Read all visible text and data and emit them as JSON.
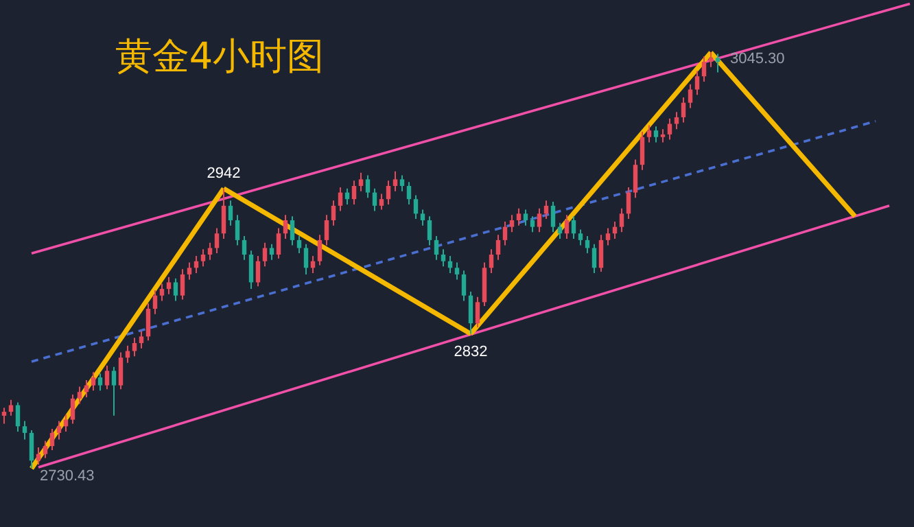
{
  "chart_data": {
    "type": "candlestick",
    "title": "黄金4小时图",
    "categories": [
      null,
      null,
      null,
      null,
      null,
      null,
      null,
      null,
      null,
      null,
      null,
      null,
      null,
      null,
      null,
      null,
      null,
      null,
      null,
      null,
      null,
      null,
      null,
      null,
      null,
      null,
      null,
      null,
      null,
      null,
      null,
      null,
      null,
      null,
      null,
      null,
      null,
      null,
      null,
      null,
      null,
      null,
      null,
      null,
      null,
      null,
      null,
      null,
      null,
      null,
      null,
      null,
      null,
      null,
      null,
      null,
      null,
      null,
      null,
      null,
      null,
      null,
      null,
      null,
      null,
      null,
      null,
      null,
      null,
      null,
      null,
      null,
      null,
      null,
      null,
      null,
      null,
      null,
      null,
      null,
      null,
      null,
      null,
      null,
      null,
      null,
      null,
      null,
      null,
      null,
      null,
      null,
      null,
      null,
      null,
      null,
      null,
      null,
      null,
      null,
      null,
      null,
      null,
      null,
      null,
      null,
      null,
      null,
      null,
      null,
      null,
      null,
      null,
      null,
      null,
      null,
      null,
      null,
      null,
      null,
      null,
      null,
      null,
      null,
      null,
      null,
      null,
      null,
      null,
      null,
      null,
      null,
      null,
      null
    ],
    "ohlc": [
      [
        2770,
        2776,
        2764,
        2773
      ],
      [
        2773,
        2782,
        2770,
        2778
      ],
      [
        2778,
        2780,
        2758,
        2762
      ],
      [
        2762,
        2766,
        2752,
        2757
      ],
      [
        2757,
        2759,
        2730.43,
        2736
      ],
      [
        2736,
        2746,
        2733,
        2741
      ],
      [
        2741,
        2751,
        2738,
        2747
      ],
      [
        2747,
        2760,
        2744,
        2757
      ],
      [
        2757,
        2766,
        2752,
        2762
      ],
      [
        2762,
        2771,
        2758,
        2767
      ],
      [
        2767,
        2786,
        2764,
        2783
      ],
      [
        2783,
        2792,
        2779,
        2788
      ],
      [
        2788,
        2797,
        2784,
        2793
      ],
      [
        2793,
        2803,
        2789,
        2799
      ],
      [
        2799,
        2802,
        2789,
        2793
      ],
      [
        2793,
        2808,
        2790,
        2804
      ],
      [
        2804,
        2807,
        2770,
        2793
      ],
      [
        2793,
        2818,
        2790,
        2814
      ],
      [
        2814,
        2823,
        2810,
        2819
      ],
      [
        2819,
        2829,
        2815,
        2825
      ],
      [
        2825,
        2834,
        2821,
        2830
      ],
      [
        2830,
        2855,
        2827,
        2851
      ],
      [
        2851,
        2865,
        2847,
        2861
      ],
      [
        2861,
        2870,
        2857,
        2866
      ],
      [
        2866,
        2875,
        2862,
        2871
      ],
      [
        2871,
        2874,
        2857,
        2861
      ],
      [
        2861,
        2881,
        2858,
        2877
      ],
      [
        2877,
        2886,
        2873,
        2882
      ],
      [
        2882,
        2891,
        2878,
        2887
      ],
      [
        2887,
        2896,
        2883,
        2892
      ],
      [
        2892,
        2901,
        2888,
        2897
      ],
      [
        2897,
        2912,
        2893,
        2908
      ],
      [
        2908,
        2942,
        2904,
        2929
      ],
      [
        2929,
        2933,
        2914,
        2918
      ],
      [
        2918,
        2922,
        2899,
        2903
      ],
      [
        2903,
        2906,
        2888,
        2892
      ],
      [
        2892,
        2895,
        2866,
        2871
      ],
      [
        2871,
        2891,
        2868,
        2887
      ],
      [
        2887,
        2901,
        2883,
        2897
      ],
      [
        2897,
        2900,
        2888,
        2892
      ],
      [
        2892,
        2912,
        2889,
        2908
      ],
      [
        2908,
        2922,
        2904,
        2918
      ],
      [
        2918,
        2921,
        2899,
        2903
      ],
      [
        2903,
        2906,
        2893,
        2897
      ],
      [
        2897,
        2900,
        2877,
        2882
      ],
      [
        2882,
        2891,
        2878,
        2887
      ],
      [
        2887,
        2907,
        2884,
        2903
      ],
      [
        2903,
        2922,
        2899,
        2918
      ],
      [
        2918,
        2933,
        2914,
        2929
      ],
      [
        2929,
        2943,
        2925,
        2939
      ],
      [
        2939,
        2942,
        2930,
        2934
      ],
      [
        2934,
        2948,
        2930,
        2944
      ],
      [
        2944,
        2954,
        2940,
        2949
      ],
      [
        2949,
        2952,
        2935,
        2939
      ],
      [
        2939,
        2942,
        2925,
        2929
      ],
      [
        2929,
        2938,
        2926,
        2934
      ],
      [
        2934,
        2948,
        2930,
        2944
      ],
      [
        2944,
        2955,
        2940,
        2949
      ],
      [
        2949,
        2952,
        2940,
        2944
      ],
      [
        2944,
        2947,
        2930,
        2934
      ],
      [
        2934,
        2937,
        2919,
        2923
      ],
      [
        2923,
        2926,
        2914,
        2918
      ],
      [
        2918,
        2921,
        2899,
        2903
      ],
      [
        2903,
        2906,
        2888,
        2892
      ],
      [
        2892,
        2896,
        2883,
        2887
      ],
      [
        2887,
        2891,
        2878,
        2882
      ],
      [
        2882,
        2886,
        2873,
        2877
      ],
      [
        2877,
        2880,
        2857,
        2861
      ],
      [
        2861,
        2864,
        2832,
        2840
      ],
      [
        2840,
        2860,
        2837,
        2856
      ],
      [
        2856,
        2886,
        2853,
        2882
      ],
      [
        2882,
        2896,
        2878,
        2892
      ],
      [
        2892,
        2907,
        2888,
        2903
      ],
      [
        2903,
        2917,
        2899,
        2913
      ],
      [
        2913,
        2922,
        2909,
        2918
      ],
      [
        2918,
        2927,
        2914,
        2923
      ],
      [
        2923,
        2926,
        2914,
        2918
      ],
      [
        2918,
        2921,
        2909,
        2913
      ],
      [
        2913,
        2927,
        2909,
        2923
      ],
      [
        2923,
        2933,
        2919,
        2929
      ],
      [
        2929,
        2932,
        2909,
        2913
      ],
      [
        2913,
        2916,
        2904,
        2908
      ],
      [
        2908,
        2922,
        2904,
        2918
      ],
      [
        2918,
        2921,
        2904,
        2908
      ],
      [
        2908,
        2911,
        2899,
        2903
      ],
      [
        2903,
        2906,
        2893,
        2897
      ],
      [
        2897,
        2900,
        2878,
        2882
      ],
      [
        2882,
        2907,
        2879,
        2903
      ],
      [
        2903,
        2912,
        2899,
        2908
      ],
      [
        2908,
        2917,
        2904,
        2913
      ],
      [
        2913,
        2927,
        2909,
        2923
      ],
      [
        2923,
        2943,
        2919,
        2939
      ],
      [
        2939,
        2964,
        2935,
        2960
      ],
      [
        2960,
        2985,
        2956,
        2981
      ],
      [
        2981,
        2990,
        2977,
        2986
      ],
      [
        2986,
        2989,
        2977,
        2981
      ],
      [
        2981,
        2987,
        2977,
        2983
      ],
      [
        2983,
        2995,
        2979,
        2991
      ],
      [
        2991,
        3000,
        2987,
        2996
      ],
      [
        2996,
        3011,
        2992,
        3007
      ],
      [
        3007,
        3021,
        3003,
        3017
      ],
      [
        3017,
        3031,
        3013,
        3027
      ],
      [
        3027,
        3042,
        3023,
        3038
      ],
      [
        3038,
        3045.3,
        3034,
        3041
      ],
      [
        3041,
        3044,
        3030,
        3038
      ],
      null,
      null,
      null,
      null,
      null,
      null,
      null,
      null,
      null,
      null,
      null,
      null,
      null,
      null,
      null,
      null,
      null,
      null,
      null,
      null,
      null,
      null,
      null,
      null,
      null,
      null,
      null,
      null,
      null
    ],
    "series": [
      {
        "type": "line",
        "color": "#f050a8",
        "values": [
          null,
          null,
          null,
          null,
          2893,
          null,
          null,
          null,
          null,
          null,
          null,
          null,
          null,
          null,
          null,
          null,
          null,
          null,
          null,
          null,
          null,
          null,
          null,
          null,
          null,
          null,
          null,
          null,
          null,
          null,
          null,
          null,
          null,
          null,
          null,
          null,
          null,
          null,
          null,
          null,
          null,
          null,
          null,
          null,
          null,
          null,
          null,
          null,
          null,
          null,
          null,
          null,
          null,
          null,
          null,
          null,
          null,
          null,
          null,
          null,
          null,
          null,
          null,
          null,
          null,
          null,
          null,
          null,
          null,
          null,
          null,
          null,
          null,
          null,
          null,
          null,
          null,
          null,
          null,
          null,
          null,
          null,
          null,
          null,
          null,
          null,
          null,
          null,
          null,
          null,
          null,
          null,
          null,
          null,
          null,
          null,
          null,
          null,
          null,
          null,
          null,
          null,
          null,
          null,
          null,
          null,
          null,
          null,
          null,
          null,
          null,
          null,
          null,
          null,
          null,
          null,
          null,
          null,
          null,
          null,
          null,
          null,
          null,
          null,
          null,
          null,
          null,
          null,
          null,
          null,
          null,
          null,
          3082,
          null
        ]
      },
      {
        "type": "line",
        "color": "#f050a8",
        "values": [
          null,
          null,
          null,
          null,
          null,
          2731,
          null,
          null,
          null,
          null,
          null,
          null,
          null,
          null,
          null,
          null,
          null,
          null,
          null,
          null,
          null,
          null,
          null,
          null,
          null,
          null,
          null,
          null,
          null,
          null,
          null,
          null,
          null,
          null,
          null,
          null,
          null,
          null,
          null,
          null,
          null,
          null,
          null,
          null,
          null,
          null,
          null,
          null,
          null,
          null,
          null,
          null,
          null,
          null,
          null,
          null,
          null,
          null,
          null,
          null,
          null,
          null,
          null,
          null,
          null,
          null,
          null,
          null,
          null,
          null,
          null,
          null,
          null,
          null,
          null,
          null,
          null,
          null,
          null,
          null,
          null,
          null,
          null,
          null,
          null,
          null,
          null,
          null,
          null,
          null,
          null,
          null,
          null,
          null,
          null,
          null,
          null,
          null,
          null,
          null,
          null,
          null,
          null,
          null,
          null,
          null,
          null,
          null,
          null,
          null,
          null,
          null,
          null,
          null,
          null,
          null,
          null,
          null,
          null,
          null,
          null,
          null,
          null,
          null,
          null,
          null,
          null,
          null,
          null,
          2929,
          null,
          null,
          null,
          null
        ]
      },
      {
        "type": "line",
        "color": "#4a6fd0",
        "line_style": "dashed",
        "values": [
          null,
          null,
          null,
          null,
          2811,
          null,
          null,
          null,
          null,
          null,
          null,
          null,
          null,
          null,
          null,
          null,
          null,
          null,
          null,
          null,
          null,
          null,
          null,
          null,
          null,
          null,
          null,
          null,
          null,
          null,
          null,
          null,
          null,
          null,
          null,
          null,
          null,
          null,
          null,
          null,
          null,
          null,
          null,
          null,
          null,
          null,
          null,
          null,
          null,
          null,
          null,
          null,
          null,
          null,
          null,
          null,
          null,
          null,
          null,
          null,
          null,
          null,
          null,
          null,
          null,
          null,
          null,
          null,
          null,
          null,
          null,
          null,
          null,
          null,
          null,
          null,
          null,
          null,
          null,
          null,
          null,
          null,
          null,
          null,
          null,
          null,
          null,
          null,
          null,
          null,
          null,
          null,
          null,
          null,
          null,
          null,
          null,
          null,
          null,
          null,
          null,
          null,
          null,
          null,
          null,
          null,
          null,
          null,
          null,
          null,
          null,
          null,
          null,
          null,
          null,
          null,
          null,
          null,
          null,
          null,
          null,
          null,
          null,
          null,
          null,
          null,
          null,
          2993,
          null,
          null,
          null,
          null,
          null,
          null
        ]
      },
      {
        "type": "line",
        "color": "#f5b800",
        "values": [
          null,
          null,
          null,
          null,
          2730,
          null,
          null,
          null,
          null,
          null,
          null,
          null,
          null,
          null,
          null,
          null,
          null,
          null,
          null,
          null,
          null,
          null,
          null,
          null,
          null,
          null,
          null,
          null,
          null,
          null,
          null,
          null,
          2942,
          null,
          null,
          null,
          null,
          null,
          null,
          null,
          null,
          null,
          null,
          null,
          null,
          null,
          null,
          null,
          null,
          null,
          null,
          null,
          null,
          null,
          null,
          null,
          null,
          null,
          null,
          null,
          null,
          null,
          null,
          null,
          null,
          null,
          null,
          null,
          null,
          null,
          null,
          null,
          null,
          null,
          null,
          null,
          null,
          null,
          null,
          null,
          null,
          null,
          null,
          null,
          null,
          null,
          null,
          null,
          null,
          null,
          null,
          null,
          null,
          null,
          null,
          null,
          null,
          null,
          null,
          null,
          null,
          null,
          null,
          null,
          null,
          null,
          null,
          null,
          null,
          null,
          null,
          null,
          null,
          null,
          null,
          null,
          null,
          null,
          null,
          null,
          null,
          null,
          null,
          null,
          null,
          null,
          null,
          null,
          null,
          null,
          null,
          null,
          null,
          null
        ]
      },
      {
        "type": "line",
        "color": "#f5b800",
        "values": [
          null,
          null,
          null,
          null,
          null,
          null,
          null,
          null,
          null,
          null,
          null,
          null,
          null,
          null,
          null,
          null,
          null,
          null,
          null,
          null,
          null,
          null,
          null,
          null,
          null,
          null,
          null,
          null,
          null,
          null,
          null,
          null,
          2942,
          null,
          null,
          null,
          null,
          null,
          null,
          null,
          null,
          null,
          null,
          null,
          null,
          null,
          null,
          null,
          null,
          null,
          null,
          null,
          null,
          null,
          null,
          null,
          null,
          null,
          null,
          null,
          null,
          null,
          null,
          null,
          null,
          null,
          null,
          null,
          2832,
          null,
          null,
          null,
          null,
          null,
          null,
          null,
          null,
          null,
          null,
          null,
          null,
          null,
          null,
          null,
          null,
          null,
          null,
          null,
          null,
          null,
          null,
          null,
          null,
          null,
          null,
          null,
          null,
          null,
          null,
          null,
          null,
          null,
          null,
          null,
          null,
          null,
          null,
          null,
          null,
          null,
          null,
          null,
          null,
          null,
          null,
          null,
          null,
          null,
          null,
          null,
          null,
          null,
          null,
          null,
          null,
          null,
          null,
          null,
          null,
          null,
          null,
          null,
          null,
          null
        ]
      },
      {
        "type": "line",
        "color": "#f5b800",
        "values": [
          null,
          null,
          null,
          null,
          null,
          null,
          null,
          null,
          null,
          null,
          null,
          null,
          null,
          null,
          null,
          null,
          null,
          null,
          null,
          null,
          null,
          null,
          null,
          null,
          null,
          null,
          null,
          null,
          null,
          null,
          null,
          null,
          null,
          null,
          null,
          null,
          null,
          null,
          null,
          null,
          null,
          null,
          null,
          null,
          null,
          null,
          null,
          null,
          null,
          null,
          null,
          null,
          null,
          null,
          null,
          null,
          null,
          null,
          null,
          null,
          null,
          null,
          null,
          null,
          null,
          null,
          null,
          null,
          2832,
          null,
          null,
          null,
          null,
          null,
          null,
          null,
          null,
          null,
          null,
          null,
          null,
          null,
          null,
          null,
          null,
          null,
          null,
          null,
          null,
          null,
          null,
          null,
          null,
          null,
          null,
          null,
          null,
          null,
          null,
          null,
          null,
          null,
          null,
          3045,
          null,
          null,
          null,
          null,
          null,
          null,
          null,
          null,
          null,
          null,
          null,
          null,
          null,
          null,
          null,
          null,
          null,
          null,
          null,
          null,
          null,
          null,
          null,
          null,
          null,
          null,
          null,
          null,
          null,
          null
        ]
      },
      {
        "type": "line",
        "color": "#f5b800",
        "values": [
          null,
          null,
          null,
          null,
          null,
          null,
          null,
          null,
          null,
          null,
          null,
          null,
          null,
          null,
          null,
          null,
          null,
          null,
          null,
          null,
          null,
          null,
          null,
          null,
          null,
          null,
          null,
          null,
          null,
          null,
          null,
          null,
          null,
          null,
          null,
          null,
          null,
          null,
          null,
          null,
          null,
          null,
          null,
          null,
          null,
          null,
          null,
          null,
          null,
          null,
          null,
          null,
          null,
          null,
          null,
          null,
          null,
          null,
          null,
          null,
          null,
          null,
          null,
          null,
          null,
          null,
          null,
          null,
          null,
          null,
          null,
          null,
          null,
          null,
          null,
          null,
          null,
          null,
          null,
          null,
          null,
          null,
          null,
          null,
          null,
          null,
          null,
          null,
          null,
          null,
          null,
          null,
          null,
          null,
          null,
          null,
          null,
          null,
          null,
          null,
          null,
          null,
          null,
          3045,
          null,
          null,
          null,
          null,
          null,
          null,
          null,
          null,
          null,
          null,
          null,
          null,
          null,
          null,
          null,
          null,
          null,
          null,
          null,
          null,
          2921,
          null,
          null,
          null,
          null,
          null,
          null,
          null,
          null,
          null
        ]
      }
    ],
    "annotations": [
      {
        "text": "2942",
        "y": 2942
      },
      {
        "text": "2832",
        "y": 2832
      },
      {
        "text": "3045.30",
        "y": 3045.3
      },
      "2730.43"
    ]
  }
}
